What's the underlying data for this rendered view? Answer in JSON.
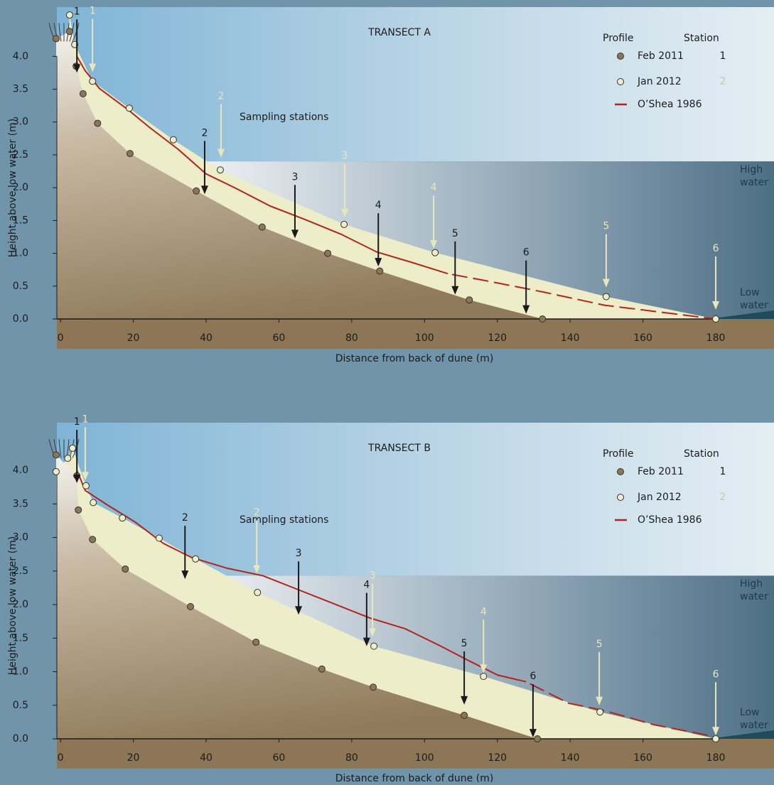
{
  "chart_data": [
    {
      "type": "scatter",
      "title": "TRANSECT A",
      "x_label": "Distance from back of dune (m)",
      "y_label": "Height above low water (m)",
      "sampling_label": "Sampling stations",
      "high_water_label": "High water",
      "low_water_label": "Low water",
      "high_water_level": 2.4,
      "legend_title": "Profile",
      "legend_station_title": "Station",
      "legend": "upper right",
      "xlim": [
        -1,
        196
      ],
      "ylim": [
        0,
        4.75
      ],
      "xticks": [
        0,
        20,
        40,
        60,
        80,
        100,
        120,
        140,
        160,
        180
      ],
      "yticks": [
        {
          "value": 0,
          "label": "0.0"
        },
        0.5,
        {
          "value": 1,
          "label": "1.0"
        },
        1.5,
        {
          "value": 2,
          "label": "2.0"
        },
        2.5,
        {
          "value": 3,
          "label": "3.0"
        },
        3.5,
        {
          "value": 4,
          "label": "4.0"
        }
      ],
      "series": [
        {
          "name": "Feb 2011",
          "color": "#8c7658",
          "station_color": "#1a1a1a",
          "x": [
            -1.2,
            2.5,
            4.3,
            6.2,
            10.2,
            19.1,
            37.3,
            55.4,
            73.4,
            87.7,
            112.3,
            132.4
          ],
          "values": [
            4.27,
            4.38,
            3.85,
            3.43,
            2.98,
            2.52,
            1.95,
            1.4,
            1.0,
            0.73,
            0.29,
            0.0
          ],
          "station_labels": [
            "1",
            "2",
            "3",
            "4",
            "5",
            "6"
          ],
          "station_x": [
            4.5,
            39.6,
            64.4,
            87.3,
            108.4,
            127.9
          ],
          "station_y": [
            3.75,
            1.9,
            1.23,
            0.8,
            0.37,
            0.08
          ]
        },
        {
          "name": "Jan 2012",
          "color": "#eeedc9",
          "station_color": "#e8e6bc",
          "x": [
            2.5,
            3.9,
            8.8,
            18.9,
            31.0,
            43.9,
            77.9,
            102.9,
            149.9,
            180
          ],
          "values": [
            4.63,
            4.18,
            3.62,
            3.21,
            2.73,
            2.27,
            1.44,
            1.01,
            0.34,
            0.0
          ],
          "station_labels": [
            "1",
            "2",
            "3",
            "4",
            "5",
            "6"
          ],
          "station_x": [
            8.8,
            44.1,
            78.1,
            102.5,
            149.9,
            180
          ],
          "station_y": [
            3.76,
            2.46,
            1.55,
            1.07,
            0.48,
            0.14
          ]
        },
        {
          "name": "O’Shea 1986",
          "color": "#b0261c",
          "dashed_from_x": 112,
          "x": [
            4.5,
            6.8,
            10.7,
            18.5,
            24.4,
            32.2,
            40.0,
            47.8,
            57.6,
            67.4,
            77.1,
            86.9,
            96.6,
            106.4,
            116.2,
            131.8,
            149.4,
            180
          ],
          "values": [
            4.0,
            3.78,
            3.51,
            3.19,
            2.92,
            2.59,
            2.21,
            2.0,
            1.72,
            1.51,
            1.29,
            1.02,
            0.86,
            0.69,
            0.59,
            0.42,
            0.21,
            0.0
          ]
        }
      ]
    },
    {
      "type": "scatter",
      "title": "TRANSECT B",
      "x_label": "Distance from back of dune (m)",
      "y_label": "Height above low water (m)",
      "sampling_label": "Sampling stations",
      "high_water_label": "High water",
      "low_water_label": "Low water",
      "high_water_level": 2.43,
      "legend_title": "Profile",
      "legend_station_title": "Station",
      "legend": "upper right",
      "xlim": [
        -1,
        196
      ],
      "ylim": [
        0,
        4.71
      ],
      "xticks": [
        0,
        20,
        40,
        60,
        80,
        100,
        120,
        140,
        160,
        180
      ],
      "yticks": [
        {
          "value": 0,
          "label": "0.0"
        },
        0.5,
        {
          "value": 1,
          "label": "1.0"
        },
        1.5,
        {
          "value": 2,
          "label": "2.0"
        },
        2.5,
        {
          "value": 3,
          "label": "3.0"
        },
        3.5,
        {
          "value": 4,
          "label": "4.0"
        }
      ],
      "series": [
        {
          "name": "Feb 2011",
          "color": "#8c7658",
          "station_color": "#1a1a1a",
          "x": [
            -1.2,
            4.5,
            4.9,
            8.8,
            17.8,
            35.7,
            53.7,
            71.8,
            85.9,
            110.9,
            131
          ],
          "values": [
            4.23,
            3.92,
            3.41,
            2.97,
            2.53,
            1.97,
            1.44,
            1.04,
            0.77,
            0.35,
            0.0
          ],
          "station_labels": [
            "1",
            "2",
            "3",
            "4",
            "5",
            "6"
          ],
          "station_x": [
            4.5,
            34.2,
            65.4,
            84.1,
            110.9,
            129.8
          ],
          "station_y": [
            3.81,
            2.38,
            1.85,
            1.38,
            0.51,
            0.02
          ]
        },
        {
          "name": "Jan 2012",
          "color": "#eeedc9",
          "station_color": "#e8e6bc",
          "x": [
            -1.2,
            2,
            3.3,
            7,
            9,
            17,
            27.1,
            37.1,
            54.1,
            86.1,
            116.2,
            148.2,
            180
          ],
          "values": [
            3.98,
            4.18,
            4.33,
            3.77,
            3.52,
            3.29,
            2.99,
            2.68,
            2.18,
            1.38,
            0.93,
            0.4,
            0.0
          ],
          "station_labels": [
            "1",
            "2",
            "3",
            "4",
            "5",
            "6"
          ],
          "station_x": [
            6.8,
            53.9,
            85.7,
            116.2,
            148,
            180
          ],
          "station_y": [
            3.85,
            2.46,
            1.52,
            0.98,
            0.5,
            0.05
          ]
        },
        {
          "name": "O’Shea 1986",
          "color": "#b0261c",
          "dashed_from_x": 128,
          "x": [
            4.5,
            6.8,
            12.7,
            20.5,
            28.3,
            36.1,
            45.9,
            55.6,
            65.4,
            75.2,
            85.0,
            94.7,
            104.5,
            112.3,
            120.1,
            127.9,
            139.6,
            149.4,
            163,
            180
          ],
          "values": [
            4.0,
            3.7,
            3.49,
            3.23,
            2.91,
            2.7,
            2.54,
            2.43,
            2.22,
            2.01,
            1.8,
            1.64,
            1.38,
            1.16,
            0.95,
            0.85,
            0.53,
            0.42,
            0.21,
            0.03
          ]
        }
      ]
    }
  ]
}
